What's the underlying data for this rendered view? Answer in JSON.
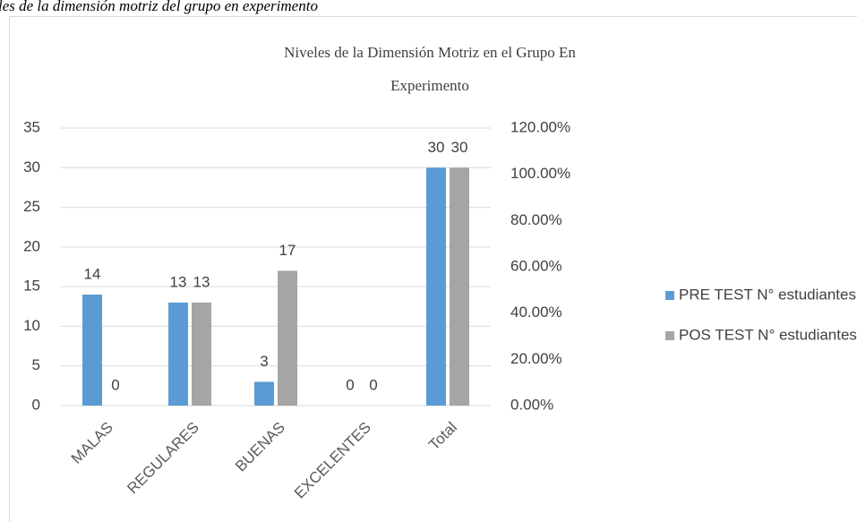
{
  "caption": "les de la dimensión motriz del grupo en experimento",
  "chart_data": {
    "type": "bar",
    "title": [
      "Niveles de la Dimensión Motriz en el Grupo En",
      "Experimento"
    ],
    "categories": [
      "MALAS",
      "REGULARES",
      "BUENAS",
      "EXCELENTES",
      "Total"
    ],
    "series": [
      {
        "name": "PRE TEST N° estudiantes",
        "color": "#5b9bd5",
        "values": [
          14,
          13,
          3,
          0,
          30
        ]
      },
      {
        "name": "POS TEST N° estudiantes",
        "color": "#a5a5a5",
        "values": [
          0,
          13,
          17,
          0,
          30
        ]
      }
    ],
    "ylim": [
      0,
      35
    ],
    "yticks": [
      0,
      5,
      10,
      15,
      20,
      25,
      30,
      35
    ],
    "y2lim": [
      0,
      120
    ],
    "y2ticks": [
      {
        "value": 0,
        "label": "0.00%"
      },
      {
        "value": 20,
        "label": "20.00%"
      },
      {
        "value": 40,
        "label": "40.00%"
      },
      {
        "value": 60,
        "label": "60.00%"
      },
      {
        "value": 80,
        "label": "80.00%"
      },
      {
        "value": 100,
        "label": "100.00%"
      },
      {
        "value": 120,
        "label": "120.00%"
      }
    ],
    "grid": true,
    "legend": "right"
  }
}
